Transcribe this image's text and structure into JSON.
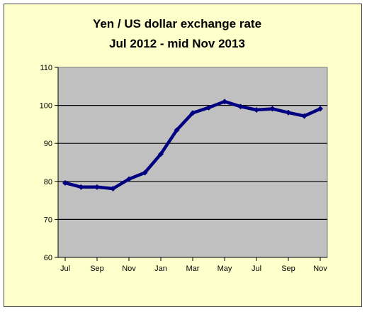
{
  "chart_data": {
    "type": "line",
    "title": "Yen / US dollar exchange rate",
    "subtitle": "Jul 2012 - mid Nov 2013",
    "xlabel": "",
    "ylabel": "",
    "ylim": [
      60,
      110
    ],
    "yticks": [
      "60",
      "70",
      "80",
      "90",
      "100",
      "110"
    ],
    "x_tick_labels": [
      "Jul",
      "Sep",
      "Nov",
      "Jan",
      "Mar",
      "May",
      "Jul",
      "Sep",
      "Nov"
    ],
    "grid": true,
    "legend": "none",
    "series": [
      {
        "color": "#000080",
        "values": [
          79.6,
          78.5,
          78.5,
          78.1,
          80.6,
          82.3,
          87.2,
          93.5,
          98.0,
          99.4,
          101.0,
          99.7,
          98.8,
          99.1,
          98.1,
          97.2,
          99.1
        ]
      }
    ],
    "plot_background": "#c0c0c0",
    "frame_background": "#ffffcc"
  }
}
